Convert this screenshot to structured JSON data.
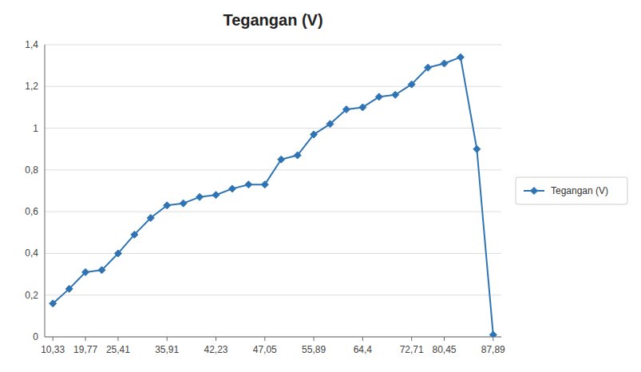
{
  "chart_data": {
    "type": "line",
    "title": "Tegangan (V)",
    "categories": [
      "10,33",
      null,
      "19,77",
      null,
      "25,41",
      null,
      null,
      "35,91",
      null,
      null,
      "42,23",
      null,
      null,
      "47,05",
      null,
      null,
      "55,89",
      null,
      null,
      "64,4",
      null,
      null,
      "72,71",
      null,
      "80,45",
      null,
      null,
      "87,89"
    ],
    "series": [
      {
        "name": "Tegangan (V)",
        "color": "#2E74B5",
        "marker": "diamond",
        "values": [
          0.16,
          0.23,
          0.31,
          0.32,
          0.4,
          0.49,
          0.57,
          0.63,
          0.64,
          0.67,
          0.68,
          0.71,
          0.73,
          0.73,
          0.85,
          0.87,
          0.97,
          1.02,
          1.09,
          1.1,
          1.15,
          1.16,
          1.21,
          1.29,
          1.31,
          1.34,
          0.9,
          0.01
        ]
      }
    ],
    "ylim": [
      0,
      1.4
    ],
    "yticks": [
      0,
      {
        "value": 0.2,
        "label": "0,2"
      },
      {
        "value": 0.4,
        "label": "0,4"
      },
      {
        "value": 0.6,
        "label": "0,6"
      },
      {
        "value": 0.8,
        "label": "0,8"
      },
      1,
      {
        "value": 1.2,
        "label": "1,2"
      },
      {
        "value": 1.4,
        "label": "1,4"
      }
    ],
    "grid": true,
    "legend": "right"
  }
}
